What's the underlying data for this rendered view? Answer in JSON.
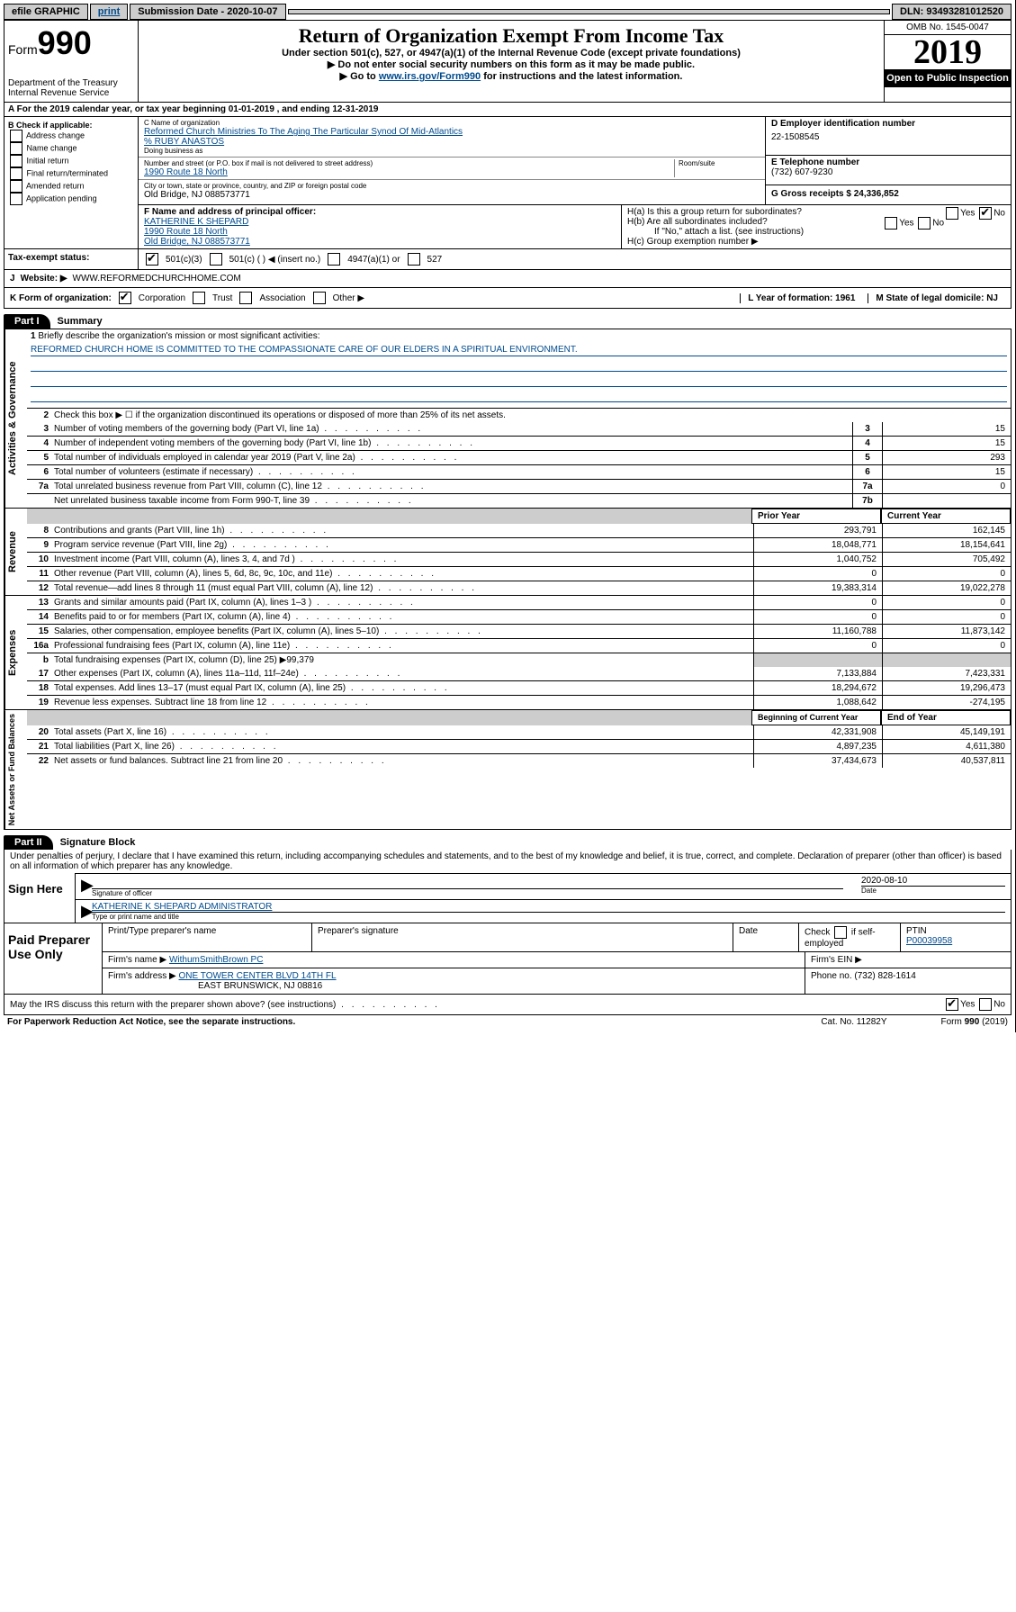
{
  "topbar": {
    "efile": "efile GRAPHIC",
    "print": "print",
    "sub_label": "Submission Date - 2020-10-07",
    "dln": "DLN: 93493281012520"
  },
  "header": {
    "form_word": "Form",
    "form_num": "990",
    "dept": "Department of the Treasury\nInternal Revenue Service",
    "title": "Return of Organization Exempt From Income Tax",
    "sub1": "Under section 501(c), 527, or 4947(a)(1) of the Internal Revenue Code (except private foundations)",
    "sub2": "▶ Do not enter social security numbers on this form as it may be made public.",
    "sub3a": "▶ Go to ",
    "sub3link": "www.irs.gov/Form990",
    "sub3b": " for instructions and the latest information.",
    "omb": "OMB No. 1545-0047",
    "year": "2019",
    "open": "Open to Public Inspection"
  },
  "rowA": "A For the 2019 calendar year, or tax year beginning 01-01-2019     , and ending 12-31-2019",
  "sectionB": {
    "hdr": "B Check if applicable:",
    "opts": [
      "Address change",
      "Name change",
      "Initial return",
      "Final return/terminated",
      "Amended return",
      "Application pending"
    ]
  },
  "sectionC": {
    "name_lbl": "C Name of organization",
    "name": "Reformed Church Ministries To The Aging The Particular Synod Of Mid-Atlantics",
    "care": "% RUBY ANASTOS",
    "dba_lbl": "Doing business as",
    "addr_lbl": "Number and street (or P.O. box if mail is not delivered to street address)",
    "room_lbl": "Room/suite",
    "addr": "1990 Route 18 North",
    "city_lbl": "City or town, state or province, country, and ZIP or foreign postal code",
    "city": "Old Bridge, NJ  088573771"
  },
  "sectionD": {
    "lbl": "D Employer identification number",
    "val": "22-1508545"
  },
  "sectionE": {
    "lbl": "E Telephone number",
    "val": "(732) 607-9230"
  },
  "sectionG": {
    "lbl": "G Gross receipts $ 24,336,852"
  },
  "sectionF": {
    "lbl": "F Name and address of principal officer:",
    "name": "KATHERINE K SHEPARD",
    "addr1": "1990 Route 18 North",
    "addr2": "Old Bridge, NJ  088573771"
  },
  "sectionH": {
    "a": "H(a)  Is this a group return for subordinates?",
    "b": "H(b)  Are all subordinates included?",
    "bnote": "If \"No,\" attach a list. (see instructions)",
    "c": "H(c)  Group exemption number ▶",
    "yes": "Yes",
    "no": "No"
  },
  "tax": {
    "lbl": "Tax-exempt status:",
    "o1": "501(c)(3)",
    "o2": "501(c) (   ) ◀ (insert no.)",
    "o3": "4947(a)(1) or",
    "o4": "527"
  },
  "sectionJ": {
    "lbl": "J",
    "web": "Website: ▶",
    "val": "WWW.REFORMEDCHURCHHOME.COM"
  },
  "sectionK": {
    "lbl": "K Form of organization:",
    "o1": "Corporation",
    "o2": "Trust",
    "o3": "Association",
    "o4": "Other ▶"
  },
  "sectionL": "L Year of formation: 1961",
  "sectionM": "M State of legal domicile: NJ",
  "part1": {
    "tab": "Part I",
    "title": "Summary"
  },
  "gov": {
    "label": "Activities & Governance",
    "line1": "Briefly describe the organization's mission or most significant activities:",
    "mission": "REFORMED CHURCH HOME IS COMMITTED TO THE COMPASSIONATE CARE OF OUR ELDERS IN A SPIRITUAL ENVIRONMENT.",
    "line2": "Check this box ▶ ☐  if the organization discontinued its operations or disposed of more than 25% of its net assets.",
    "rows": [
      {
        "n": "3",
        "d": "Number of voting members of the governing body (Part VI, line 1a)",
        "c": "3",
        "v": "15"
      },
      {
        "n": "4",
        "d": "Number of independent voting members of the governing body (Part VI, line 1b)",
        "c": "4",
        "v": "15"
      },
      {
        "n": "5",
        "d": "Total number of individuals employed in calendar year 2019 (Part V, line 2a)",
        "c": "5",
        "v": "293"
      },
      {
        "n": "6",
        "d": "Total number of volunteers (estimate if necessary)",
        "c": "6",
        "v": "15"
      },
      {
        "n": "7a",
        "d": "Total unrelated business revenue from Part VIII, column (C), line 12",
        "c": "7a",
        "v": "0"
      },
      {
        "n": "",
        "d": "Net unrelated business taxable income from Form 990-T, line 39",
        "c": "7b",
        "v": ""
      }
    ]
  },
  "rev": {
    "label": "Revenue",
    "hdr_prior": "Prior Year",
    "hdr_curr": "Current Year",
    "rows": [
      {
        "n": "8",
        "d": "Contributions and grants (Part VIII, line 1h)",
        "p": "293,791",
        "c": "162,145"
      },
      {
        "n": "9",
        "d": "Program service revenue (Part VIII, line 2g)",
        "p": "18,048,771",
        "c": "18,154,641"
      },
      {
        "n": "10",
        "d": "Investment income (Part VIII, column (A), lines 3, 4, and 7d )",
        "p": "1,040,752",
        "c": "705,492"
      },
      {
        "n": "11",
        "d": "Other revenue (Part VIII, column (A), lines 5, 6d, 8c, 9c, 10c, and 11e)",
        "p": "0",
        "c": "0"
      },
      {
        "n": "12",
        "d": "Total revenue—add lines 8 through 11 (must equal Part VIII, column (A), line 12)",
        "p": "19,383,314",
        "c": "19,022,278"
      }
    ]
  },
  "exp": {
    "label": "Expenses",
    "rows": [
      {
        "n": "13",
        "d": "Grants and similar amounts paid (Part IX, column (A), lines 1–3 )",
        "p": "0",
        "c": "0"
      },
      {
        "n": "14",
        "d": "Benefits paid to or for members (Part IX, column (A), line 4)",
        "p": "0",
        "c": "0"
      },
      {
        "n": "15",
        "d": "Salaries, other compensation, employee benefits (Part IX, column (A), lines 5–10)",
        "p": "11,160,788",
        "c": "11,873,142"
      },
      {
        "n": "16a",
        "d": "Professional fundraising fees (Part IX, column (A), line 11e)",
        "p": "0",
        "c": "0"
      }
    ],
    "line_b": "Total fundraising expenses (Part IX, column (D), line 25) ▶99,379",
    "rows2": [
      {
        "n": "17",
        "d": "Other expenses (Part IX, column (A), lines 11a–11d, 11f–24e)",
        "p": "7,133,884",
        "c": "7,423,331"
      },
      {
        "n": "18",
        "d": "Total expenses. Add lines 13–17 (must equal Part IX, column (A), line 25)",
        "p": "18,294,672",
        "c": "19,296,473"
      },
      {
        "n": "19",
        "d": "Revenue less expenses. Subtract line 18 from line 12",
        "p": "1,088,642",
        "c": "-274,195"
      }
    ]
  },
  "net": {
    "label": "Net Assets or Fund Balances",
    "hdr_beg": "Beginning of Current Year",
    "hdr_end": "End of Year",
    "rows": [
      {
        "n": "20",
        "d": "Total assets (Part X, line 16)",
        "p": "42,331,908",
        "c": "45,149,191"
      },
      {
        "n": "21",
        "d": "Total liabilities (Part X, line 26)",
        "p": "4,897,235",
        "c": "4,611,380"
      },
      {
        "n": "22",
        "d": "Net assets or fund balances. Subtract line 21 from line 20",
        "p": "37,434,673",
        "c": "40,537,811"
      }
    ]
  },
  "part2": {
    "tab": "Part II",
    "title": "Signature Block"
  },
  "sig": {
    "perjury": "Under penalties of perjury, I declare that I have examined this return, including accompanying schedules and statements, and to the best of my knowledge and belief, it is true, correct, and complete. Declaration of preparer (other than officer) is based on all information of which preparer has any knowledge.",
    "sign_here": "Sign Here",
    "sig_officer": "Signature of officer",
    "date": "2020-08-10",
    "date_lbl": "Date",
    "name": "KATHERINE K SHEPARD  ADMINISTRATOR",
    "name_lbl": "Type or print name and title"
  },
  "paid": {
    "lbl": "Paid Preparer Use Only",
    "h1": "Print/Type preparer's name",
    "h2": "Preparer's signature",
    "h3": "Date",
    "h4a": "Check",
    "h4b": "if self-employed",
    "h5": "PTIN",
    "ptin": "P00039958",
    "firm_lbl": "Firm's name    ▶",
    "firm": "WithumSmithBrown PC",
    "ein_lbl": "Firm's EIN ▶",
    "addr_lbl": "Firm's address ▶",
    "addr": "ONE TOWER CENTER BLVD 14TH FL",
    "addr2": "EAST BRUNSWICK, NJ  08816",
    "phone_lbl": "Phone no. (732) 828-1614"
  },
  "discuss": {
    "q": "May the IRS discuss this return with the preparer shown above? (see instructions)",
    "yes": "Yes",
    "no": "No"
  },
  "footer": {
    "left": "For Paperwork Reduction Act Notice, see the separate instructions.",
    "mid": "Cat. No. 11282Y",
    "right": "Form 990 (2019)"
  }
}
